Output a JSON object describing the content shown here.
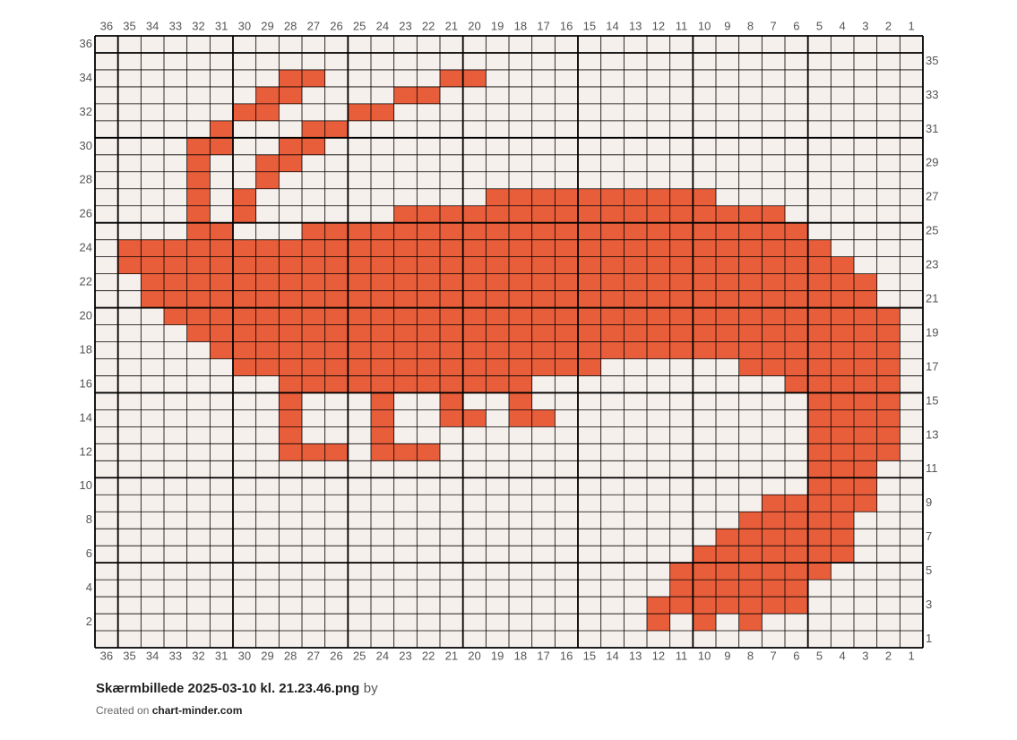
{
  "grid": {
    "columns": [
      36,
      35,
      34,
      33,
      32,
      31,
      30,
      29,
      28,
      27,
      26,
      25,
      24,
      23,
      22,
      21,
      20,
      19,
      18,
      17,
      16,
      15,
      14,
      13,
      12,
      11,
      10,
      9,
      8,
      7,
      6,
      5,
      4,
      3,
      2,
      1
    ],
    "rows_left": [
      36,
      34,
      32,
      30,
      28,
      26,
      24,
      22,
      20,
      18,
      16,
      14,
      12,
      10,
      8,
      6,
      4,
      2
    ],
    "rows_right": [
      35,
      33,
      31,
      29,
      27,
      25,
      23,
      21,
      19,
      17,
      15,
      13,
      11,
      9,
      7,
      5,
      3,
      1
    ],
    "fill_color": "#e85d3a",
    "empty_color": "#f6f0ed",
    "filled": [
      {
        "row": 34,
        "cols": [
          28,
          27,
          21,
          20
        ]
      },
      {
        "row": 33,
        "cols": [
          29,
          28,
          23,
          22
        ]
      },
      {
        "row": 32,
        "cols": [
          30,
          29,
          25,
          24
        ]
      },
      {
        "row": 31,
        "cols": [
          31,
          27,
          26
        ]
      },
      {
        "row": 30,
        "cols": [
          32,
          31,
          28,
          27
        ]
      },
      {
        "row": 29,
        "cols": [
          32,
          29,
          28
        ]
      },
      {
        "row": 28,
        "cols": [
          32,
          29
        ]
      },
      {
        "row": 27,
        "cols": [
          32,
          30,
          19,
          18,
          17,
          16,
          15,
          14,
          13,
          12,
          11,
          10
        ]
      },
      {
        "row": 26,
        "cols": [
          32,
          30,
          23,
          22,
          21,
          20,
          19,
          18,
          17,
          16,
          15,
          14,
          13,
          12,
          11,
          10,
          9,
          8,
          7
        ]
      },
      {
        "row": 25,
        "cols": [
          32,
          31,
          27,
          26,
          25,
          24,
          23,
          22,
          21,
          20,
          19,
          18,
          17,
          16,
          15,
          14,
          13,
          12,
          11,
          10,
          9,
          8,
          7,
          6
        ]
      },
      {
        "row": 24,
        "cols": [
          35,
          34,
          33,
          32,
          31,
          30,
          29,
          28,
          27,
          26,
          25,
          24,
          23,
          22,
          21,
          20,
          19,
          18,
          17,
          16,
          15,
          14,
          13,
          12,
          11,
          10,
          9,
          8,
          7,
          6,
          5
        ]
      },
      {
        "row": 23,
        "cols": [
          35,
          34,
          33,
          32,
          31,
          30,
          29,
          28,
          27,
          26,
          25,
          24,
          23,
          22,
          21,
          20,
          19,
          18,
          17,
          16,
          15,
          14,
          13,
          12,
          11,
          10,
          9,
          8,
          7,
          6,
          5,
          4
        ]
      },
      {
        "row": 22,
        "cols": [
          34,
          33,
          32,
          31,
          30,
          29,
          28,
          27,
          26,
          25,
          24,
          23,
          22,
          21,
          20,
          19,
          18,
          17,
          16,
          15,
          14,
          13,
          12,
          11,
          10,
          9,
          8,
          7,
          6,
          5,
          4,
          3
        ]
      },
      {
        "row": 21,
        "cols": [
          34,
          33,
          32,
          31,
          30,
          29,
          28,
          27,
          26,
          25,
          24,
          23,
          22,
          21,
          20,
          19,
          18,
          17,
          16,
          15,
          14,
          13,
          12,
          11,
          10,
          9,
          8,
          7,
          6,
          5,
          4,
          3
        ]
      },
      {
        "row": 20,
        "cols": [
          33,
          32,
          31,
          30,
          29,
          28,
          27,
          26,
          25,
          24,
          23,
          22,
          21,
          20,
          19,
          18,
          17,
          16,
          15,
          14,
          13,
          12,
          11,
          10,
          9,
          8,
          7,
          6,
          5,
          4,
          3,
          2
        ]
      },
      {
        "row": 19,
        "cols": [
          32,
          31,
          30,
          29,
          28,
          27,
          26,
          25,
          24,
          23,
          22,
          21,
          20,
          19,
          18,
          17,
          16,
          15,
          14,
          13,
          12,
          11,
          10,
          9,
          8,
          7,
          6,
          5,
          4,
          3,
          2
        ]
      },
      {
        "row": 18,
        "cols": [
          31,
          30,
          29,
          28,
          27,
          26,
          25,
          24,
          23,
          22,
          21,
          20,
          19,
          18,
          17,
          16,
          15,
          14,
          13,
          12,
          11,
          10,
          9,
          8,
          7,
          6,
          5,
          4,
          3,
          2
        ]
      },
      {
        "row": 17,
        "cols": [
          30,
          29,
          28,
          27,
          26,
          25,
          24,
          23,
          22,
          21,
          20,
          19,
          18,
          17,
          16,
          15,
          8,
          7,
          6,
          5,
          4,
          3,
          2
        ]
      },
      {
        "row": 16,
        "cols": [
          28,
          27,
          26,
          25,
          24,
          23,
          22,
          21,
          20,
          19,
          18,
          6,
          5,
          4,
          3,
          2
        ]
      },
      {
        "row": 15,
        "cols": [
          28,
          24,
          21,
          18,
          5,
          4,
          3,
          2
        ]
      },
      {
        "row": 14,
        "cols": [
          28,
          24,
          21,
          20,
          18,
          17,
          5,
          4,
          3,
          2
        ]
      },
      {
        "row": 13,
        "cols": [
          28,
          24,
          5,
          4,
          3,
          2
        ]
      },
      {
        "row": 12,
        "cols": [
          28,
          27,
          26,
          24,
          23,
          22,
          5,
          4,
          3,
          2
        ]
      },
      {
        "row": 11,
        "cols": [
          5,
          4,
          3
        ]
      },
      {
        "row": 10,
        "cols": [
          5,
          4,
          3
        ]
      },
      {
        "row": 9,
        "cols": [
          7,
          6,
          5,
          4,
          3
        ]
      },
      {
        "row": 8,
        "cols": [
          8,
          7,
          6,
          5,
          4
        ]
      },
      {
        "row": 7,
        "cols": [
          9,
          8,
          7,
          6,
          5,
          4
        ]
      },
      {
        "row": 6,
        "cols": [
          10,
          9,
          8,
          7,
          6,
          5,
          4
        ]
      },
      {
        "row": 5,
        "cols": [
          11,
          10,
          9,
          8,
          7,
          6,
          5
        ]
      },
      {
        "row": 4,
        "cols": [
          11,
          10,
          9,
          8,
          7,
          6
        ]
      },
      {
        "row": 3,
        "cols": [
          12,
          11,
          10,
          9,
          8,
          7,
          6
        ]
      },
      {
        "row": 2,
        "cols": [
          12,
          10,
          8
        ]
      }
    ]
  },
  "caption": {
    "title": "Skærmbillede 2025-03-10 kl. 21.23.46.png",
    "by": "by",
    "created_on": "Created on",
    "site": "chart-minder.com"
  }
}
